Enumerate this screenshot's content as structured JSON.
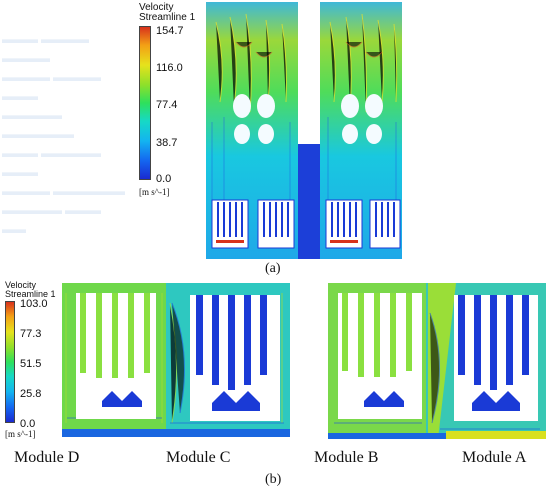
{
  "figure_a": {
    "legend": {
      "title_line1": "Velocity",
      "title_line2": "Streamline 1",
      "ticks": [
        "154.7",
        "116.0",
        "77.4",
        "38.7",
        "0.0"
      ],
      "unit": "[m s^-1]"
    },
    "caption": "(a)"
  },
  "figure_b": {
    "legend": {
      "title_line1": "Velocity",
      "title_line2": "Streamline 1",
      "ticks": [
        "103.0",
        "77.3",
        "51.5",
        "25.8",
        "0.0"
      ],
      "unit": "[m s^-1]"
    },
    "caption": "(b)",
    "modules": [
      "Module D",
      "Module C",
      "Module B",
      "Module A"
    ]
  },
  "colors": {
    "flow_blue": "#1a3ad6",
    "flow_cyan": "#19c8e0",
    "flow_green": "#4fdc3a",
    "flow_yellow": "#d9e020",
    "flow_red": "#d8321c"
  }
}
